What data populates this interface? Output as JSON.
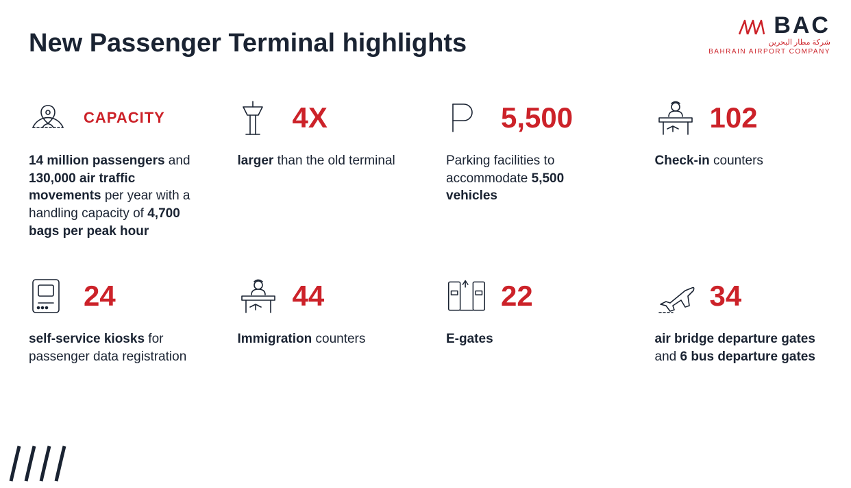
{
  "colors": {
    "accent": "#cc2229",
    "text": "#1a2332",
    "background": "#ffffff"
  },
  "typography": {
    "title_fontsize": 38,
    "stat_fontsize": 42,
    "desc_fontsize": 19
  },
  "logo": {
    "name": "BAC",
    "arabic": "شركة مطار البحرين",
    "sub": "BAHRAIN AIRPORT COMPANY"
  },
  "title": "New Passenger Terminal highlights",
  "cards": [
    {
      "icon": "globe-pin-icon",
      "stat": "CAPACITY",
      "stat_small": true,
      "desc_html": "<b>14 million passengers</b> and <b>130,000 air traffic movements</b> per year with a handling capacity of <b>4,700 bags per peak hour</b>"
    },
    {
      "icon": "tower-icon",
      "stat": "4X",
      "desc_html": "<b>larger</b> than the old terminal"
    },
    {
      "icon": "parking-icon",
      "stat": "5,500",
      "desc_html": "Parking facilities to accommodate <b>5,500 vehicles</b>"
    },
    {
      "icon": "counter-icon",
      "stat": "102",
      "desc_html": "<b>Check-in</b> counters"
    },
    {
      "icon": "kiosk-icon",
      "stat": "24",
      "desc_html": "<b>self-service kiosks</b> for passenger data registration"
    },
    {
      "icon": "counter-icon",
      "stat": "44",
      "desc_html": "<b>Immigration</b> counters"
    },
    {
      "icon": "egate-icon",
      "stat": "22",
      "desc_html": "<b>E-gates</b>"
    },
    {
      "icon": "plane-icon",
      "stat": "34",
      "desc_html": "<b>air bridge departure gates</b> and <b>6 bus departure gates</b>"
    }
  ]
}
